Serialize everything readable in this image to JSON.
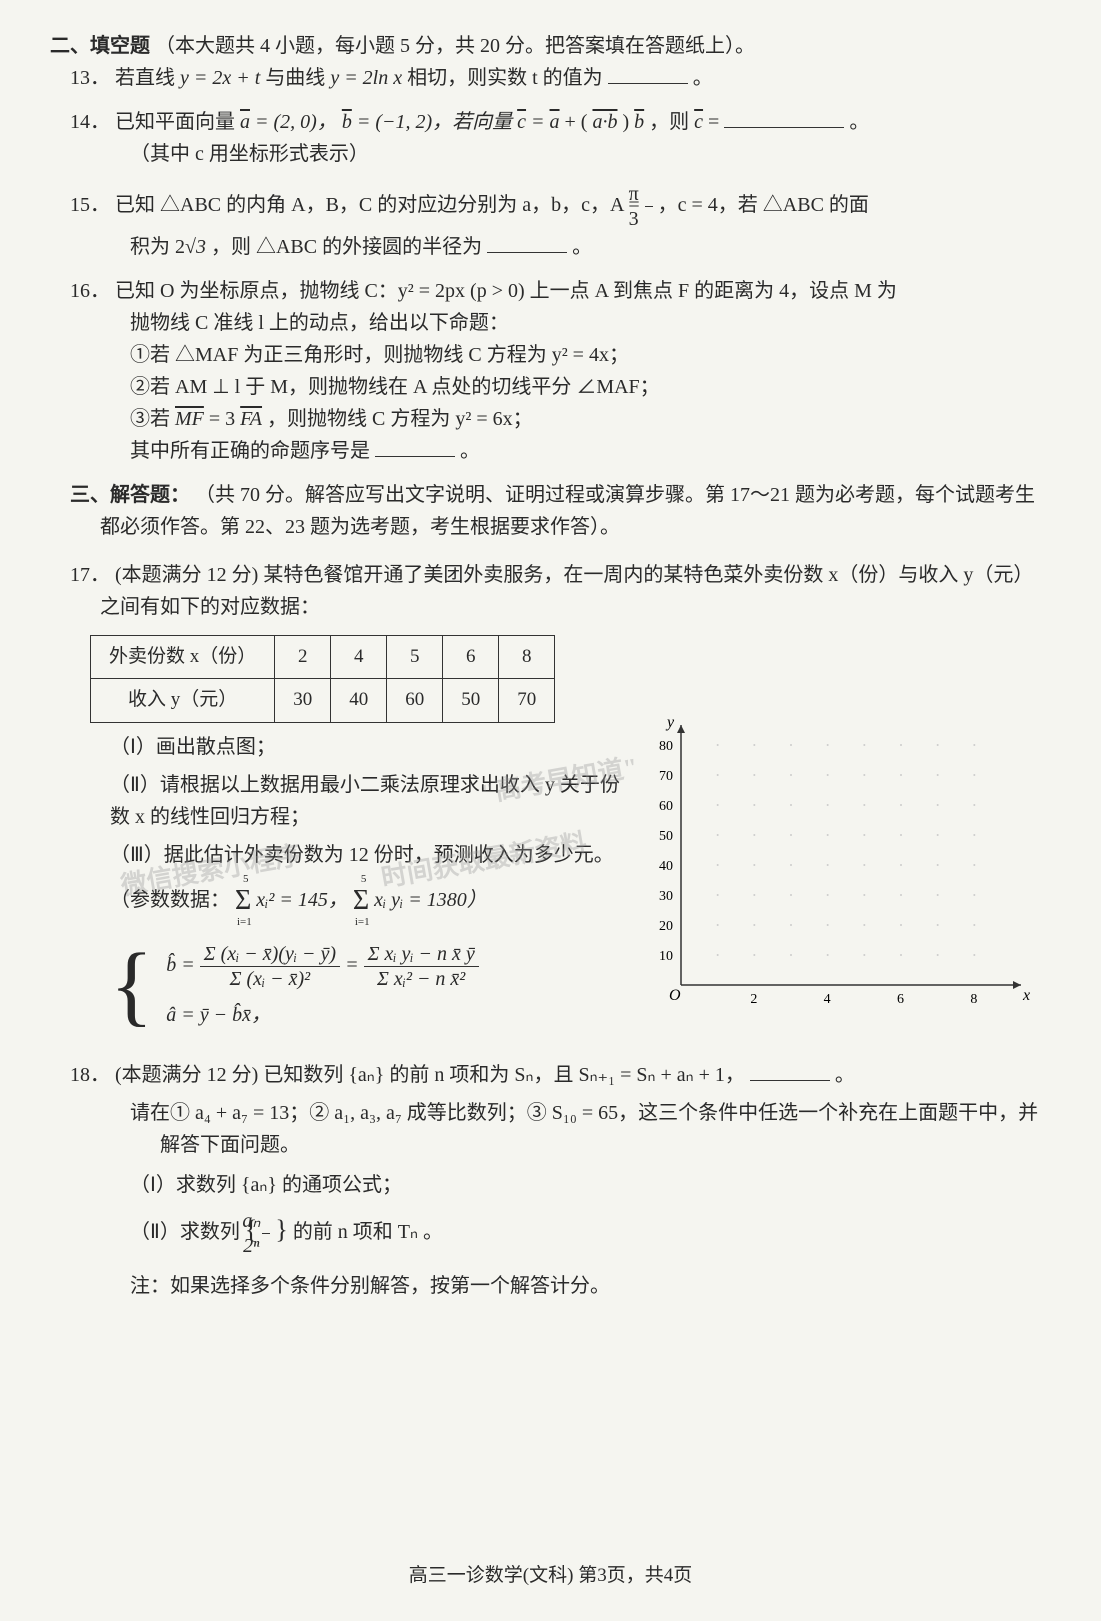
{
  "section2": {
    "header": "二、填空题",
    "header_desc": "（本大题共 4 小题，每小题 5 分，共 20 分。把答案填在答题纸上）。"
  },
  "q13": {
    "num": "13．",
    "text_a": "若直线 ",
    "eq1": "y = 2x + t",
    "text_b": " 与曲线 ",
    "eq2": "y = 2ln x",
    "text_c": " 相切，则实数 t 的值为",
    "text_d": "。"
  },
  "q14": {
    "num": "14．",
    "text_a": "已知平面向量 ",
    "vec_a": "a",
    "eq_a": " = (2, 0)，",
    "vec_b": "b",
    "eq_b": " = (−1, 2)，若向量 ",
    "vec_c": "c",
    "eq_c": " = ",
    "vec_a2": "a",
    "text_plus": " + (",
    "vec_ab": "a·b",
    "text_b2": ")",
    "vec_b2": "b",
    "text_then": "，则 ",
    "vec_c2": "c",
    "text_eq": " = ",
    "text_end": "。",
    "note": "（其中 c 用坐标形式表示）"
  },
  "q15": {
    "num": "15．",
    "text_a": "已知 △ABC 的内角 A，B，C 的对应边分别为 a，b，c，A = ",
    "frac_num": "π",
    "frac_den": "3",
    "text_b": "，c = 4，若 △ABC 的面",
    "text_c": "积为 2",
    "sqrt3": "√3",
    "text_d": "，则 △ABC 的外接圆的半径为",
    "text_e": "。"
  },
  "q16": {
    "num": "16．",
    "text_a": "已知 O 为坐标原点，抛物线 C：y² = 2px (p > 0) 上一点 A 到焦点 F 的距离为 4，设点 M 为",
    "text_b": "抛物线 C 准线 l 上的动点，给出以下命题：",
    "item1": "①若 △MAF 为正三角形时，则抛物线 C 方程为 y² = 4x；",
    "item2": "②若 AM ⊥ l 于 M，则抛物线在 A 点处的切线平分 ∠MAF；",
    "item3_a": "③若 ",
    "item3_mf": "MF",
    "item3_b": " = 3",
    "item3_fa": "FA",
    "item3_c": "，则抛物线 C 方程为 y² = 6x；",
    "text_c": "其中所有正确的命题序号是",
    "text_d": "。"
  },
  "section3": {
    "header": "三、解答题：",
    "header_desc": "（共 70 分。解答应写出文字说明、证明过程或演算步骤。第 17～21 题为必考题，每个试题考生都必须作答。第 22、23 题为选考题，考生根据要求作答）。"
  },
  "q17": {
    "num": "17．",
    "intro": "(本题满分 12 分) 某特色餐馆开通了美团外卖服务，在一周内的某特色菜外卖份数 x（份）与收入 y（元）之间有如下的对应数据：",
    "table": {
      "row1_label": "外卖份数 x（份）",
      "row1_values": [
        "2",
        "4",
        "5",
        "6",
        "8"
      ],
      "row2_label": "收入 y（元）",
      "row2_values": [
        "30",
        "40",
        "60",
        "50",
        "70"
      ]
    },
    "part1": "（Ⅰ）画出散点图；",
    "part2": "（Ⅱ）请根据以上数据用最小二乘法原理求出收入 y 关于份数 x 的线性回归方程；",
    "part3": "（Ⅲ）据此估计外卖份数为 12 份时，预测收入为多少元。",
    "ref_data": "（参数数据：",
    "ref_eq1_a": "Σ",
    "ref_eq1_sub": "i=1",
    "ref_eq1_sup": "5",
    "ref_eq1_b": " xᵢ² = 145，",
    "ref_eq2_a": "Σ",
    "ref_eq2_sub": "i=1",
    "ref_eq2_sup": "5",
    "ref_eq2_b": " xᵢ yᵢ = 1380）",
    "formula_b1_num": "Σ (xᵢ − x̄)(yᵢ − ȳ)",
    "formula_b1_den": "Σ (xᵢ − x̄)²",
    "formula_b2_num": "Σ xᵢ yᵢ − n x̄ ȳ",
    "formula_b2_den": "Σ xᵢ² − n x̄²",
    "formula_a": "â = ȳ − b̂x̄，"
  },
  "q18": {
    "num": "18．",
    "intro_a": "(本题满分 12 分) 已知数列 {aₙ} 的前 n 项和为 Sₙ，且 Sₙ₊₁ = Sₙ + aₙ + 1，",
    "intro_b": "。",
    "conditions": "请在① a₄ + a₇ = 13；② a₁, a₃, a₇ 成等比数列；③ S₁₀ = 65，这三个条件中任选一个补充在上面题干中，并解答下面问题。",
    "part1": "（Ⅰ）求数列 {aₙ} 的通项公式；",
    "part2_a": "（Ⅱ）求数列 ",
    "part2_frac_num": "aₙ",
    "part2_frac_den": "2ⁿ",
    "part2_b": " 的前 n 项和 Tₙ 。",
    "note": "注：如果选择多个条件分别解答，按第一个解答计分。"
  },
  "footer": "高三一诊数学(文科) 第3页，共4页",
  "chart": {
    "type": "scatter-grid",
    "x_label": "x",
    "y_label": "y",
    "x_ticks": [
      "2",
      "4",
      "6",
      "8"
    ],
    "y_ticks": [
      "10",
      "20",
      "30",
      "40",
      "50",
      "60",
      "70",
      "80"
    ],
    "origin_label": "O",
    "xlim": [
      0,
      9
    ],
    "ylim": [
      0,
      85
    ],
    "grid_color": "#cccccc",
    "axis_color": "#333333",
    "background_color": "transparent"
  },
  "watermarks": {
    "w1": "微信搜索小程序",
    "w2": "\"高考早知道\"",
    "w3": "时间获取最新资料"
  }
}
